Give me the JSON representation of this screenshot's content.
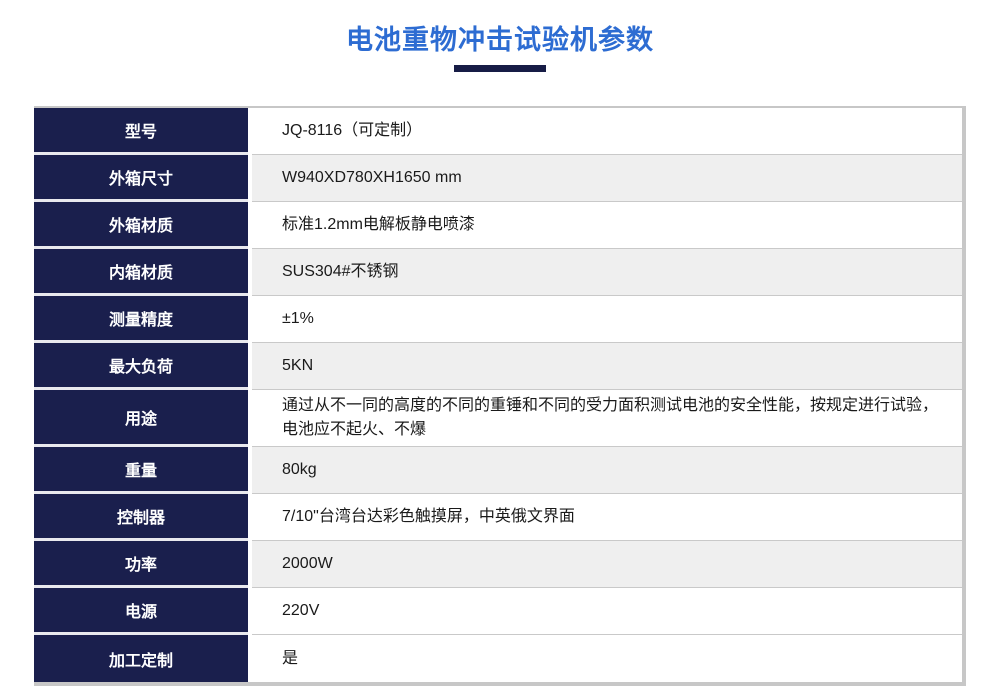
{
  "title": "电池重物冲击试验机参数",
  "colors": {
    "navy": "#1a1f4d",
    "title_blue": "#2d6cd2",
    "row_alt_gray": "#efefef",
    "border_gray": "#c7c7c7"
  },
  "table": {
    "rows": [
      {
        "label": "型号",
        "value": "JQ-8116（可定制）"
      },
      {
        "label": "外箱尺寸",
        "value": "W940XD780XH1650 mm"
      },
      {
        "label": "外箱材质",
        "value": "标准1.2mm电解板静电喷漆"
      },
      {
        "label": "内箱材质",
        "value": "SUS304#不锈钢"
      },
      {
        "label": "测量精度",
        "value": "±1%"
      },
      {
        "label": "最大负荷",
        "value": "5KN"
      },
      {
        "label": "用途",
        "value": "通过从不一同的高度的不同的重锤和不同的受力面积测试电池的安全性能，按规定进行试验，电池应不起火、不爆"
      },
      {
        "label": "重量",
        "value": "80kg"
      },
      {
        "label": "控制器",
        "value": "7/10\"台湾台达彩色触摸屏，中英俄文界面"
      },
      {
        "label": "功率",
        "value": "2000W"
      },
      {
        "label": "电源",
        "value": "220V"
      },
      {
        "label": "加工定制",
        "value": "是"
      }
    ]
  }
}
